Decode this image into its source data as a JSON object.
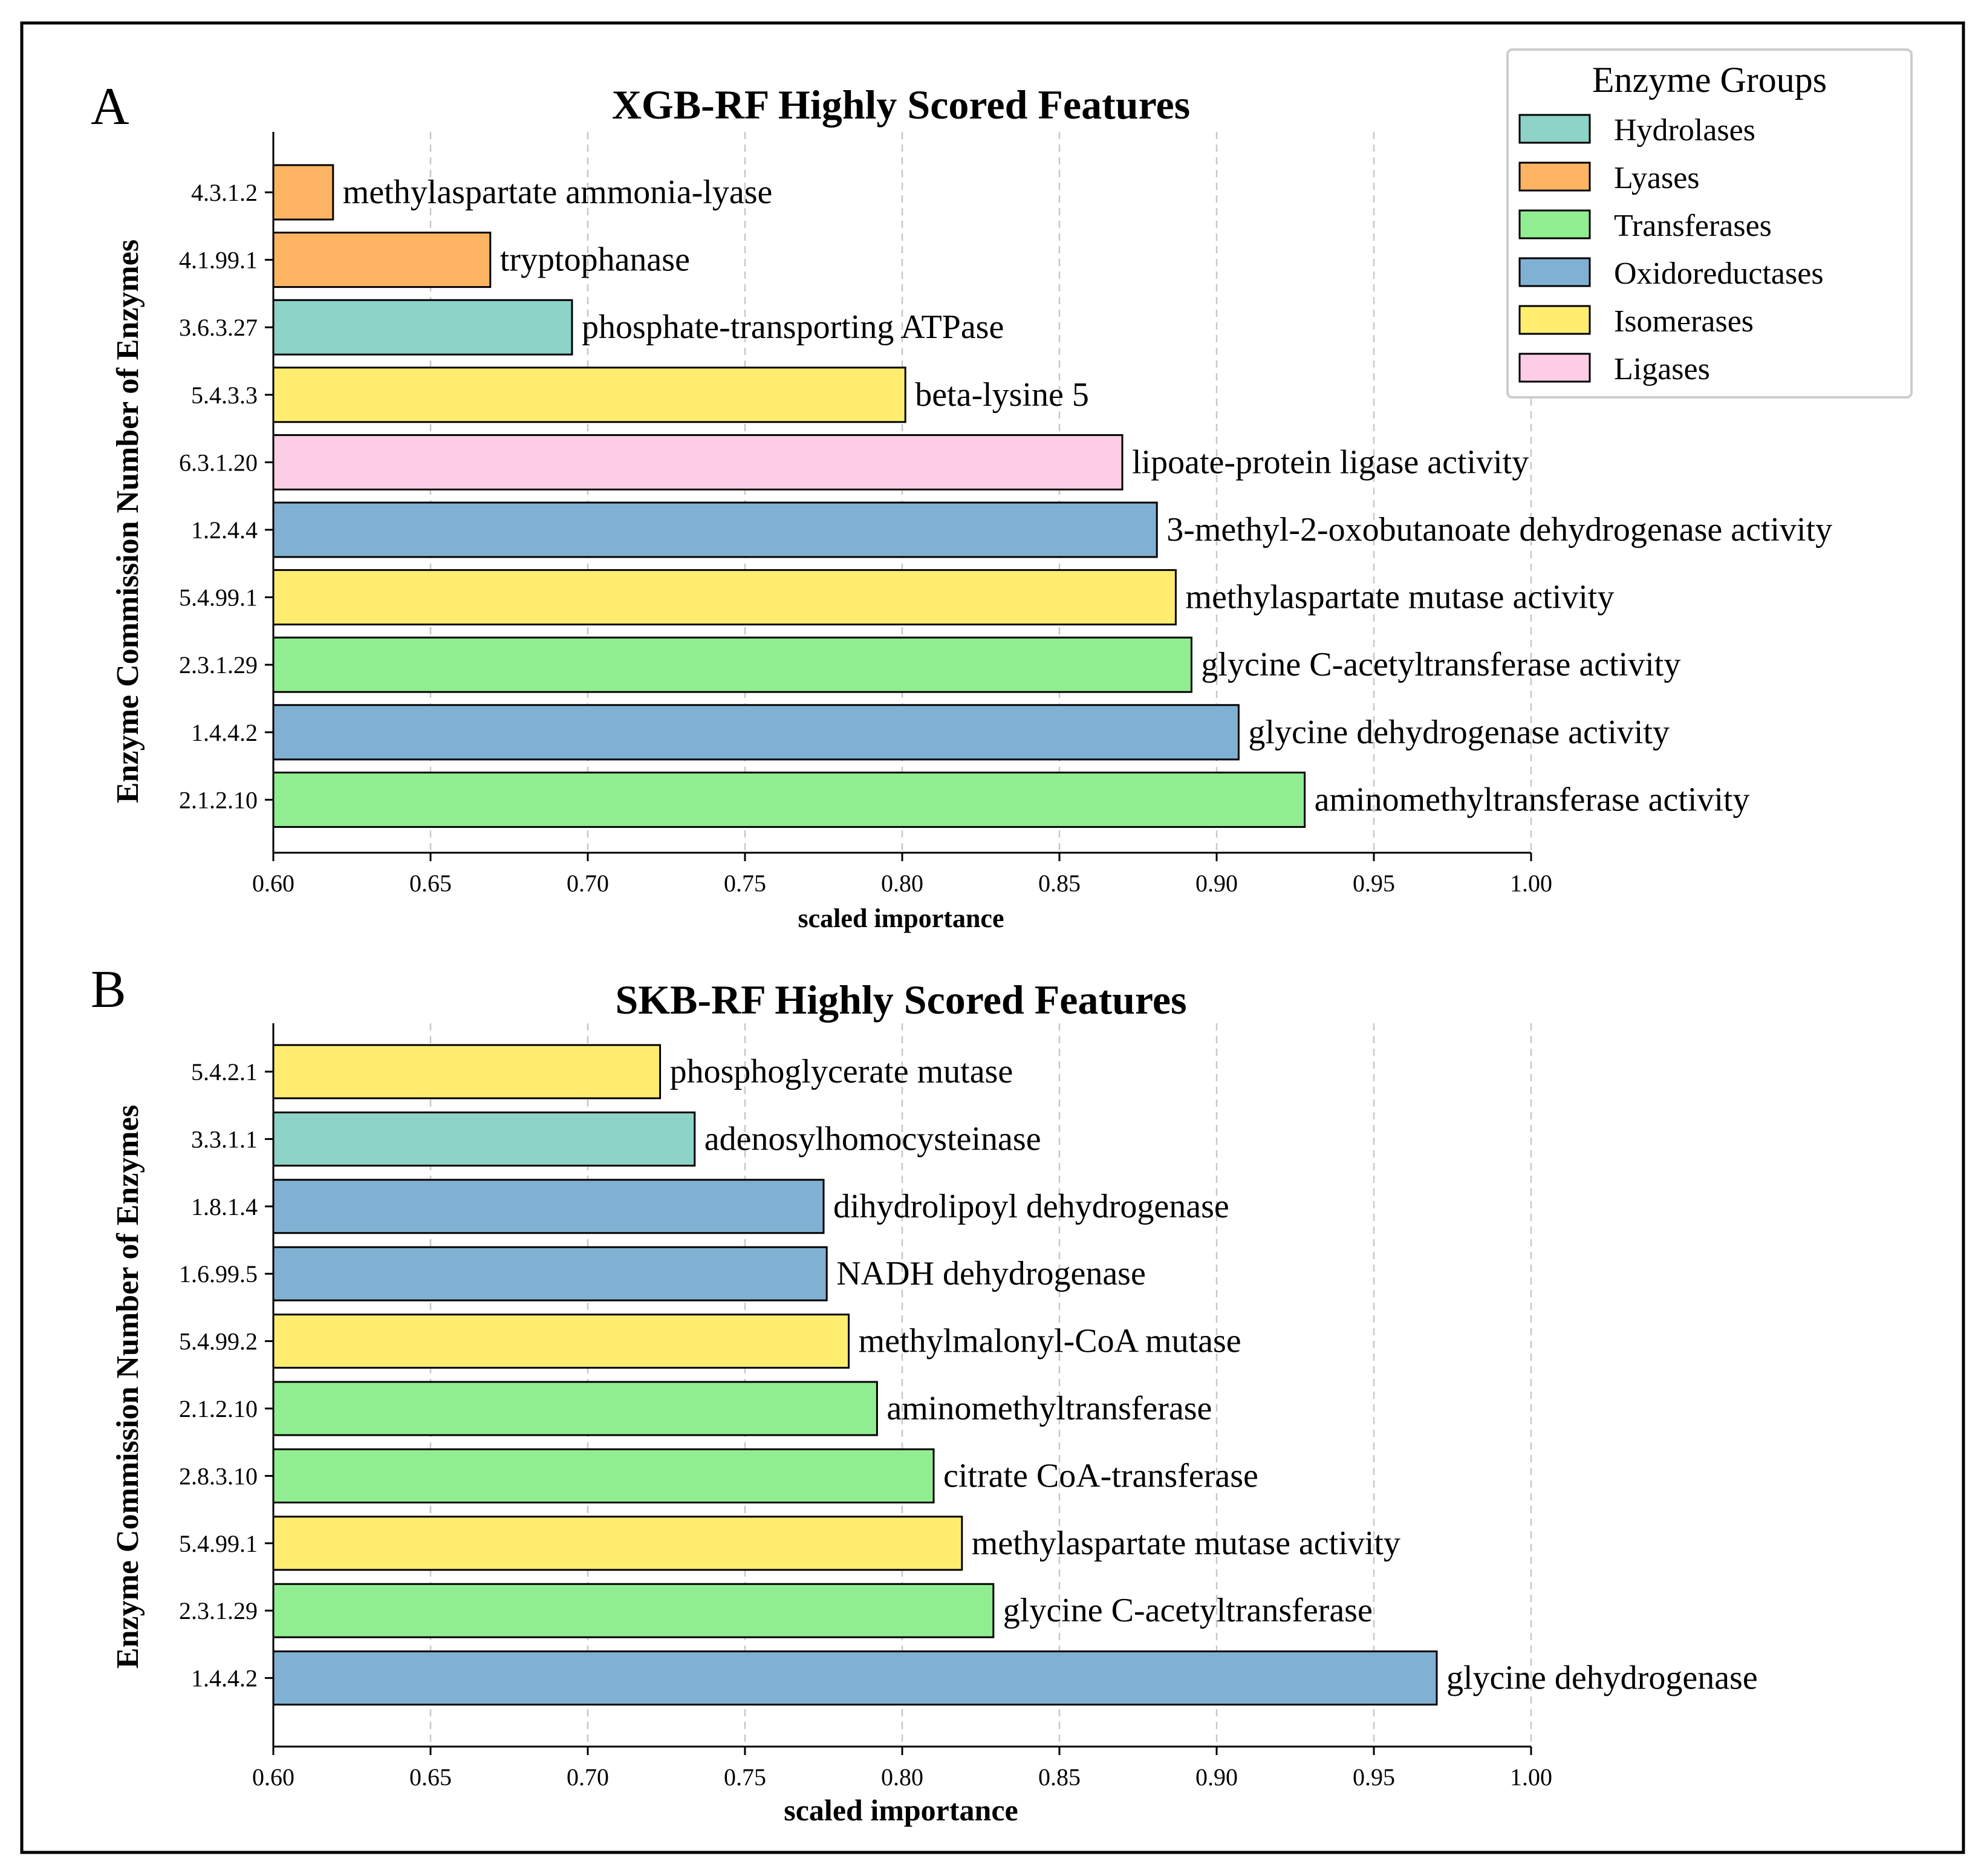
{
  "panels": [
    {
      "letter": "A",
      "chart_data": {
        "type": "bar",
        "orientation": "horizontal",
        "title": "XGB-RF Highly Scored Features",
        "xlabel": "scaled importance",
        "ylabel": "Enzyme Commission Number of Enzymes",
        "xlim": [
          0.6,
          1.0
        ],
        "xticks": [
          "0.60",
          "0.65",
          "0.70",
          "0.75",
          "0.80",
          "0.85",
          "0.90",
          "0.95",
          "1.00"
        ],
        "grid": "vertical dashed",
        "bars": [
          {
            "ec": "4.3.1.2",
            "name": "methylaspartate ammonia-lyase",
            "value": 0.619,
            "group": "Lyases"
          },
          {
            "ec": "4.1.99.1",
            "name": "tryptophanase",
            "value": 0.669,
            "group": "Lyases"
          },
          {
            "ec": "3.6.3.27",
            "name": "phosphate-transporting ATPase",
            "value": 0.695,
            "group": "Hydrolases"
          },
          {
            "ec": "5.4.3.3",
            "name": "beta-lysine 5",
            "value": 0.801,
            "group": "Isomerases"
          },
          {
            "ec": "6.3.1.20",
            "name": "lipoate-protein ligase activity",
            "value": 0.87,
            "group": "Ligases"
          },
          {
            "ec": "1.2.4.4",
            "name": "3-methyl-2-oxobutanoate dehydrogenase activity",
            "value": 0.881,
            "group": "Oxidoreductases"
          },
          {
            "ec": "5.4.99.1",
            "name": "methylaspartate mutase activity",
            "value": 0.887,
            "group": "Isomerases"
          },
          {
            "ec": "2.3.1.29",
            "name": "glycine C-acetyltransferase activity",
            "value": 0.892,
            "group": "Transferases"
          },
          {
            "ec": "1.4.4.2",
            "name": "glycine dehydrogenase activity",
            "value": 0.907,
            "group": "Oxidoreductases"
          },
          {
            "ec": "2.1.2.10",
            "name": "aminomethyltransferase activity",
            "value": 0.928,
            "group": "Transferases"
          }
        ]
      }
    },
    {
      "letter": "B",
      "chart_data": {
        "type": "bar",
        "orientation": "horizontal",
        "title": "SKB-RF Highly Scored Features",
        "xlabel": "scaled importance",
        "ylabel": "Enzyme Commission Number of Enzymes",
        "xlim": [
          0.6,
          1.0
        ],
        "xticks": [
          "0.60",
          "0.65",
          "0.70",
          "0.75",
          "0.80",
          "0.85",
          "0.90",
          "0.95",
          "1.00"
        ],
        "grid": "vertical dashed",
        "bars": [
          {
            "ec": "5.4.2.1",
            "name": "phosphoglycerate mutase",
            "value": 0.723,
            "group": "Isomerases"
          },
          {
            "ec": "3.3.1.1",
            "name": "adenosylhomocysteinase",
            "value": 0.734,
            "group": "Hydrolases"
          },
          {
            "ec": "1.8.1.4",
            "name": "dihydrolipoyl dehydrogenase",
            "value": 0.775,
            "group": "Oxidoreductases"
          },
          {
            "ec": "1.6.99.5",
            "name": "NADH dehydrogenase",
            "value": 0.776,
            "group": "Oxidoreductases"
          },
          {
            "ec": "5.4.99.2",
            "name": "methylmalonyl-CoA mutase",
            "value": 0.783,
            "group": "Isomerases"
          },
          {
            "ec": "2.1.2.10",
            "name": "aminomethyltransferase",
            "value": 0.792,
            "group": "Transferases"
          },
          {
            "ec": "2.8.3.10",
            "name": "citrate CoA-transferase",
            "value": 0.81,
            "group": "Transferases"
          },
          {
            "ec": "5.4.99.1",
            "name": "methylaspartate mutase activity",
            "value": 0.819,
            "group": "Isomerases"
          },
          {
            "ec": "2.3.1.29",
            "name": "glycine C-acetyltransferase",
            "value": 0.829,
            "group": "Transferases"
          },
          {
            "ec": "1.4.4.2",
            "name": "glycine dehydrogenase",
            "value": 0.97,
            "group": "Oxidoreductases"
          }
        ]
      }
    }
  ],
  "legend": {
    "title": "Enzyme Groups",
    "placement": "top-right",
    "items": [
      {
        "label": "Hydrolases",
        "color": "#8dd3c7"
      },
      {
        "label": "Lyases",
        "color": "#fdb462"
      },
      {
        "label": "Transferases",
        "color": "#90ee90"
      },
      {
        "label": "Oxidoreductases",
        "color": "#80b1d3"
      },
      {
        "label": "Isomerases",
        "color": "#ffed6f"
      },
      {
        "label": "Ligases",
        "color": "#fccde5"
      }
    ]
  }
}
